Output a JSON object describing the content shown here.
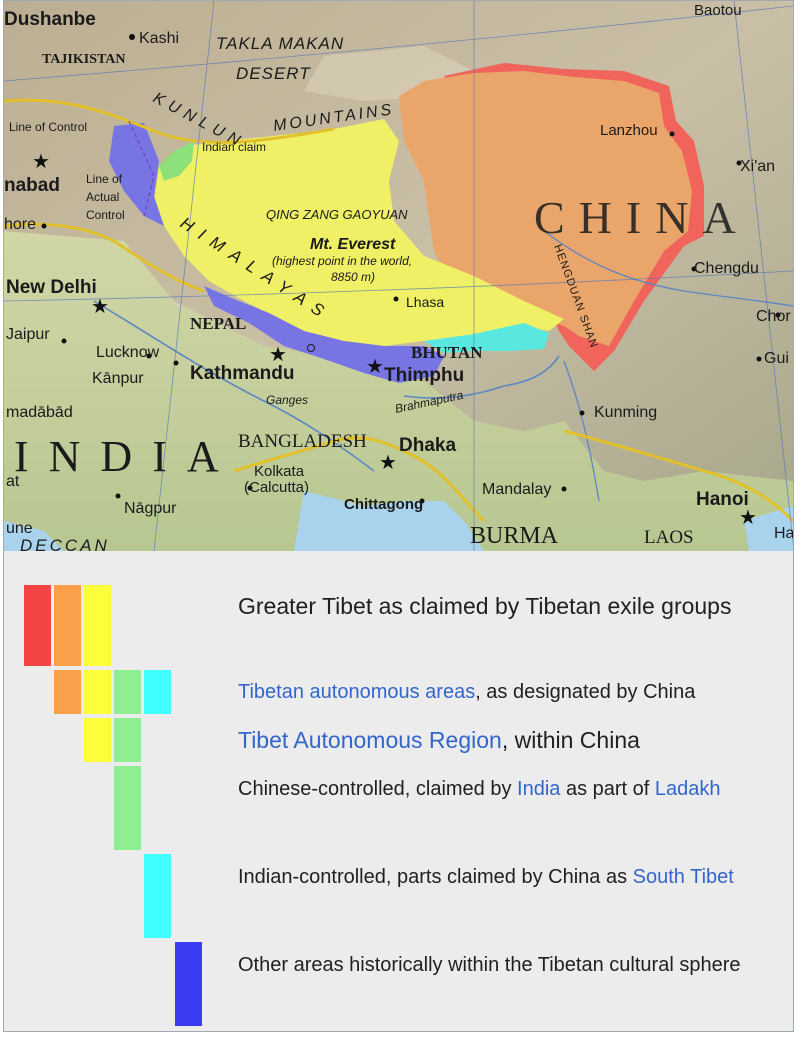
{
  "map": {
    "labels": {
      "dushanbe": "Dushanbe",
      "kashi": "Kashi",
      "tajikistan": "TAJIKISTAN",
      "takla_makan": "TAKLA MAKAN",
      "desert": "DESERT",
      "baotou": "Baotou",
      "kunlun": "KUNLUN",
      "mountains": "MOUNTAINS",
      "indian_claim": "Indian claim",
      "line_of_control": "Line of Control",
      "lanzhou": "Lanzhou",
      "xian": "Xi'an",
      "china": "CHINA",
      "nabad": "nabad",
      "line_actual_control_1": "Line of",
      "line_actual_control_2": "Actual",
      "line_actual_control_3": "Control",
      "hore": "hore",
      "qing_zang": "QING ZANG GAOYUAN",
      "mt_everest": "Mt. Everest",
      "everest_note_1": "(highest point in the world,",
      "everest_note_2": "8850 m)",
      "himalayas": "HIMALAYAS",
      "chengdu": "Chengdu",
      "new_delhi": "New Delhi",
      "lhasa": "Lhasa",
      "hengduan": "HENGDUAN SHAN",
      "chor": "Chor",
      "jaipur": "Jaipur",
      "nepal": "NEPAL",
      "bhutan": "BHUTAN",
      "gui": "Gui",
      "lucknow": "Lucknow",
      "kanpur": "Kānpur",
      "kathmandu": "Kathmandu",
      "thimphu": "Thimphu",
      "ganges": "Ganges",
      "brahmaputra": "Brahmaputra",
      "kunming": "Kunming",
      "madabad": "madābād",
      "india": "INDIA",
      "bangladesh": "BANGLADESH",
      "dhaka": "Dhaka",
      "kolkata_1": "Kolkata",
      "kolkata_2": "(Calcutta)",
      "mandalay": "Mandalay",
      "hanoi": "Hanoi",
      "at": "at",
      "nagpur": "Nāgpur",
      "chittagong": "Chittagong",
      "une": "une",
      "deccan": "DECCAN",
      "burma": "BURMA",
      "laos": "LAOS",
      "ha": "Ha"
    }
  },
  "legend": {
    "colors": {
      "red": "#f44444",
      "orange": "#fba04a",
      "yellow": "#fdfd3c",
      "green": "#90ee90",
      "cyan": "#40ffff",
      "blue": "#3c3cf4"
    },
    "items": [
      {
        "text": "Greater Tibet as claimed by Tibetan exile groups",
        "swatches": [
          "red",
          "orange",
          "yellow"
        ]
      },
      {
        "link": "Tibetan autonomous areas",
        "text": ", as designated by China",
        "swatches": [
          "orange",
          "yellow",
          "green",
          "cyan"
        ]
      },
      {
        "link": "Tibet Autonomous Region",
        "text": ", within China",
        "swatches": [
          "yellow",
          "green"
        ]
      },
      {
        "text_before": "Chinese-controlled, claimed by ",
        "link": "India",
        "text_mid": " as part of ",
        "link2": "Ladakh",
        "swatches": [
          "green"
        ]
      },
      {
        "text_before": "Indian-controlled, parts claimed by China as ",
        "link": "South Tibet",
        "swatches": [
          "cyan"
        ]
      },
      {
        "text": "Other areas historically within the Tibetan cultural sphere",
        "swatches": [
          "blue"
        ]
      }
    ]
  }
}
